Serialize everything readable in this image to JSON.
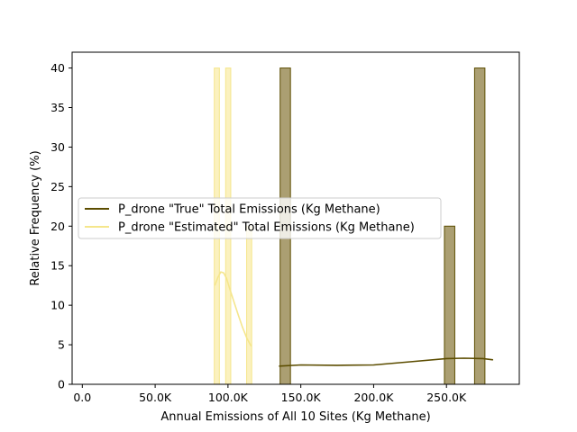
{
  "chart_data": {
    "type": "histogram",
    "xlabel": "Annual Emissions of All 10 Sites (Kg Methane)",
    "ylabel": "Relative Frequency (%)",
    "xlim": [
      -7000,
      300000
    ],
    "ylim": [
      0,
      42
    ],
    "x_ticks": [
      0,
      50000,
      100000,
      150000,
      200000,
      250000
    ],
    "x_tick_labels": [
      "0.0",
      "50.0K",
      "100.0K",
      "150.0K",
      "200.0K",
      "250.0K"
    ],
    "y_ticks": [
      0,
      5,
      10,
      15,
      20,
      25,
      30,
      35,
      40
    ],
    "y_tick_labels": [
      "0",
      "5",
      "10",
      "15",
      "20",
      "25",
      "30",
      "35",
      "40"
    ],
    "legend_position": "center-left",
    "grid": false,
    "series": [
      {
        "name": "P_drone \"True\" Total Emissions (Kg Methane)",
        "color": "#5c4d00",
        "fill": "#ab9f72",
        "bins": [
          {
            "x0": 135800,
            "x1": 142900,
            "value": 40
          },
          {
            "x0": 248600,
            "x1": 255700,
            "value": 20
          },
          {
            "x0": 269300,
            "x1": 276400,
            "value": 40
          }
        ],
        "kde": {
          "x": [
            135000,
            150000,
            175000,
            200000,
            225000,
            250000,
            262000,
            275000,
            282000
          ],
          "y": [
            2.3,
            2.45,
            2.4,
            2.45,
            2.85,
            3.25,
            3.3,
            3.25,
            3.1
          ]
        }
      },
      {
        "name": "P_drone \"Estimated\" Total Emissions (Kg Methane)",
        "color": "#f5e68c",
        "fill": "#fbf1bf",
        "bins": [
          {
            "x0": 90600,
            "x1": 94100,
            "value": 40
          },
          {
            "x0": 98400,
            "x1": 101900,
            "value": 40
          },
          {
            "x0": 112800,
            "x1": 116300,
            "value": 20
          }
        ],
        "kde": {
          "x": [
            91000,
            93000,
            95000,
            97000,
            99000,
            101000,
            104000,
            107000,
            110000,
            113000,
            116000
          ],
          "y": [
            12.5,
            13.5,
            14.2,
            14.1,
            13.4,
            12.2,
            10.5,
            8.8,
            7.2,
            5.8,
            4.8
          ]
        }
      }
    ]
  }
}
